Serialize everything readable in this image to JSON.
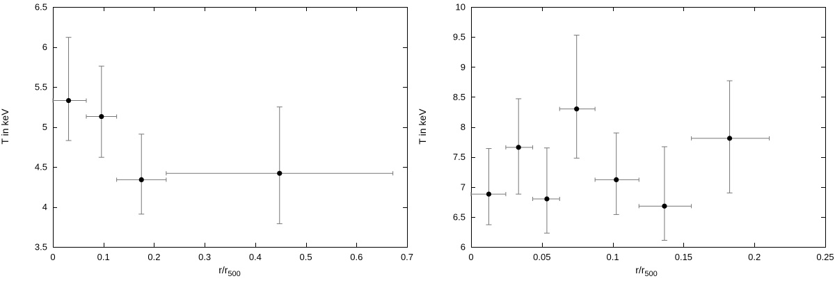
{
  "chart_data": [
    {
      "type": "scatter",
      "xlabel": "r/r",
      "xlabel_sub": "500",
      "ylabel": "T in keV",
      "xlim": [
        0,
        0.7
      ],
      "ylim": [
        3.5,
        6.5
      ],
      "xticks": [
        0,
        0.1,
        0.2,
        0.3,
        0.4,
        0.5,
        0.6,
        0.7
      ],
      "xtick_labels": [
        "0",
        "0.1",
        "0.2",
        "0.3",
        "0.4",
        "0.5",
        "0.6",
        "0.7"
      ],
      "yticks": [
        3.5,
        4,
        4.5,
        5,
        5.5,
        6,
        6.5
      ],
      "ytick_labels": [
        "3.5",
        "4",
        "4.5",
        "5",
        "5.5",
        "6",
        "6.5"
      ],
      "grid": false,
      "points": [
        {
          "x": 0.031,
          "y": 5.33,
          "xlo": 0.0,
          "xhi": 0.066,
          "ylo": 4.83,
          "yhi": 6.12
        },
        {
          "x": 0.096,
          "y": 5.13,
          "xlo": 0.066,
          "xhi": 0.126,
          "ylo": 4.62,
          "yhi": 5.76
        },
        {
          "x": 0.175,
          "y": 4.34,
          "xlo": 0.126,
          "xhi": 0.224,
          "ylo": 3.91,
          "yhi": 4.91
        },
        {
          "x": 0.448,
          "y": 4.42,
          "xlo": 0.224,
          "xhi": 0.672,
          "ylo": 3.79,
          "yhi": 5.25
        }
      ]
    },
    {
      "type": "scatter",
      "xlabel": "r/r",
      "xlabel_sub": "500",
      "ylabel": "T in keV",
      "xlim": [
        0,
        0.25
      ],
      "ylim": [
        6,
        10
      ],
      "xticks": [
        0,
        0.05,
        0.1,
        0.15,
        0.2,
        0.25
      ],
      "xtick_labels": [
        "0",
        "0.05",
        "0.1",
        "0.15",
        "0.2",
        "0.25"
      ],
      "yticks": [
        6,
        6.5,
        7,
        7.5,
        8,
        8.5,
        9,
        9.5,
        10
      ],
      "ytick_labels": [
        "6",
        "6.5",
        "7",
        "7.5",
        "8",
        "8.5",
        "9",
        "9.5",
        "10"
      ],
      "grid": false,
      "points": [
        {
          "x": 0.0125,
          "y": 6.88,
          "xlo": 0.0,
          "xhi": 0.0245,
          "ylo": 6.37,
          "yhi": 7.64
        },
        {
          "x": 0.0335,
          "y": 7.66,
          "xlo": 0.0245,
          "xhi": 0.0435,
          "ylo": 6.88,
          "yhi": 8.47
        },
        {
          "x": 0.0535,
          "y": 6.8,
          "xlo": 0.0435,
          "xhi": 0.0625,
          "ylo": 6.23,
          "yhi": 7.65
        },
        {
          "x": 0.0745,
          "y": 8.3,
          "xlo": 0.0625,
          "xhi": 0.0875,
          "ylo": 7.48,
          "yhi": 9.53
        },
        {
          "x": 0.1025,
          "y": 7.12,
          "xlo": 0.0875,
          "xhi": 0.1185,
          "ylo": 6.54,
          "yhi": 7.9
        },
        {
          "x": 0.1365,
          "y": 6.68,
          "xlo": 0.1185,
          "xhi": 0.1555,
          "ylo": 6.11,
          "yhi": 7.67
        },
        {
          "x": 0.1825,
          "y": 7.81,
          "xlo": 0.1555,
          "xhi": 0.2105,
          "ylo": 6.9,
          "yhi": 8.77
        }
      ]
    }
  ]
}
